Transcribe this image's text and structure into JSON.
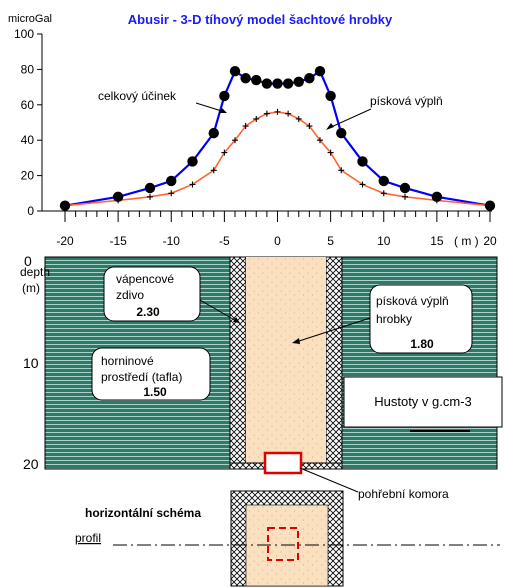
{
  "title": "Abusir - 3-D tíhový model šachtové hrobky",
  "chart_data": {
    "type": "line",
    "title": "Abusir - 3-D tíhový model šachtové hrobky",
    "ylabel": "microGal",
    "xunit": "( m )",
    "ylim": [
      0,
      100
    ],
    "xlim": [
      -20,
      20
    ],
    "x_ticks": [
      "-20",
      "-15",
      "-10",
      "-5",
      "0",
      "5",
      "10",
      "15",
      "20"
    ],
    "y_ticks": [
      "0",
      "20",
      "40",
      "60",
      "80",
      "100"
    ],
    "grid": false,
    "series": [
      {
        "name": "celkový účinek",
        "color": "#0000ff",
        "marker": "filled-circle",
        "x": [
          -20,
          -15,
          -12,
          -10,
          -8,
          -6,
          -5,
          -4,
          -3,
          -2,
          -1,
          0,
          1,
          2,
          3,
          4,
          5,
          6,
          8,
          10,
          12,
          15,
          20
        ],
        "y": [
          3,
          8,
          13,
          17,
          28,
          44,
          65,
          79,
          75,
          74,
          72,
          72,
          72,
          73,
          75,
          79,
          65,
          44,
          28,
          17,
          13,
          8,
          3
        ]
      },
      {
        "name": "písková výplň",
        "color": "#ff6633",
        "marker": "plus",
        "x": [
          -20,
          -15,
          -12,
          -10,
          -8,
          -6,
          -5,
          -4,
          -3,
          -2,
          -1,
          0,
          1,
          2,
          3,
          4,
          5,
          6,
          8,
          10,
          12,
          15,
          20
        ],
        "y": [
          3,
          6,
          8,
          10,
          15,
          23,
          33,
          40,
          48,
          52,
          55,
          56,
          55,
          52,
          48,
          40,
          33,
          23,
          15,
          10,
          8,
          6,
          3
        ]
      }
    ]
  },
  "section": {
    "depth_label": "depth",
    "depth_unit": "(m)",
    "depth_ticks": [
      "0",
      "10",
      "20"
    ],
    "labels": {
      "limestone": "vápencové zdivo",
      "limestone_density": "2.30",
      "sand": "písková výplň hrobky",
      "sand_density": "1.80",
      "host": "horninové prostředí (tafla)",
      "host_density": "1.50",
      "legend_box": "Hustoty v g.cm-3",
      "chamber": "pohřební komora"
    },
    "colors": {
      "host_fill": "#2e7a6a",
      "sand_fill": "#fbe0c0",
      "wall_fill": "#ffffff",
      "chamber_outline": "#e00000"
    }
  },
  "plan": {
    "title": "horizontální schéma",
    "profile_label": "profil"
  }
}
